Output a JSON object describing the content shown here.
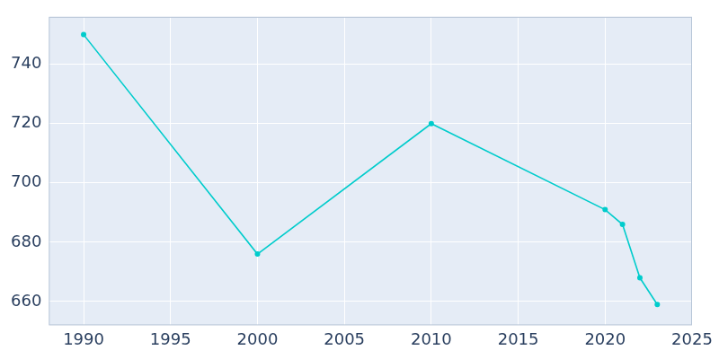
{
  "chart_data": {
    "type": "line",
    "x": [
      1990,
      2000,
      2010,
      2020,
      2021,
      2022,
      2023
    ],
    "values": [
      750,
      676,
      720,
      691,
      686,
      668,
      659
    ],
    "color": "#00cccc",
    "marker": "circle",
    "xlim": [
      1988,
      2025
    ],
    "xticks": [
      1990,
      1995,
      2000,
      2005,
      2010,
      2015,
      2020,
      2025
    ],
    "ylim": [
      652,
      756
    ],
    "yticks": [
      660,
      680,
      700,
      720,
      740
    ],
    "grid": true
  }
}
